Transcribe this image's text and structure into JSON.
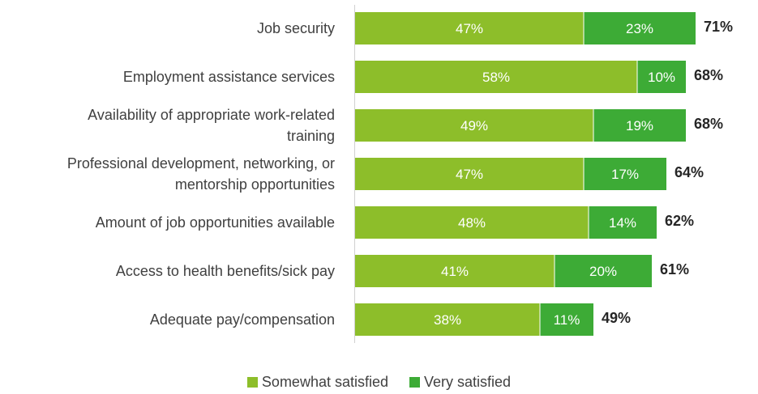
{
  "chart_data": {
    "type": "bar",
    "orientation": "horizontal",
    "stacked": true,
    "categories": [
      [
        "Job security"
      ],
      [
        "Employment assistance services"
      ],
      [
        "Availability of appropriate work-related",
        "training"
      ],
      [
        "Professional development, networking, or",
        "mentorship opportunities"
      ],
      [
        "Amount of job opportunities available"
      ],
      [
        "Access to health benefits/sick pay"
      ],
      [
        "Adequate pay/compensation"
      ]
    ],
    "series": [
      {
        "name": "Somewhat satisfied",
        "color": "#8DBE2A",
        "values": [
          47,
          58,
          49,
          47,
          48,
          41,
          38
        ]
      },
      {
        "name": "Very satisfied",
        "color": "#3DAB36",
        "values": [
          23,
          10,
          19,
          17,
          14,
          20,
          11
        ]
      }
    ],
    "segment_labels": [
      [
        "47%",
        "58%",
        "49%",
        "47%",
        "48%",
        "41%",
        "38%"
      ],
      [
        "23%",
        "10%",
        "19%",
        "17%",
        "14%",
        "20%",
        "11%"
      ]
    ],
    "totals": [
      "71%",
      "68%",
      "68%",
      "64%",
      "62%",
      "61%",
      "49%"
    ],
    "legend_position": "bottom",
    "grid": false,
    "xlim": [
      0,
      72
    ]
  }
}
